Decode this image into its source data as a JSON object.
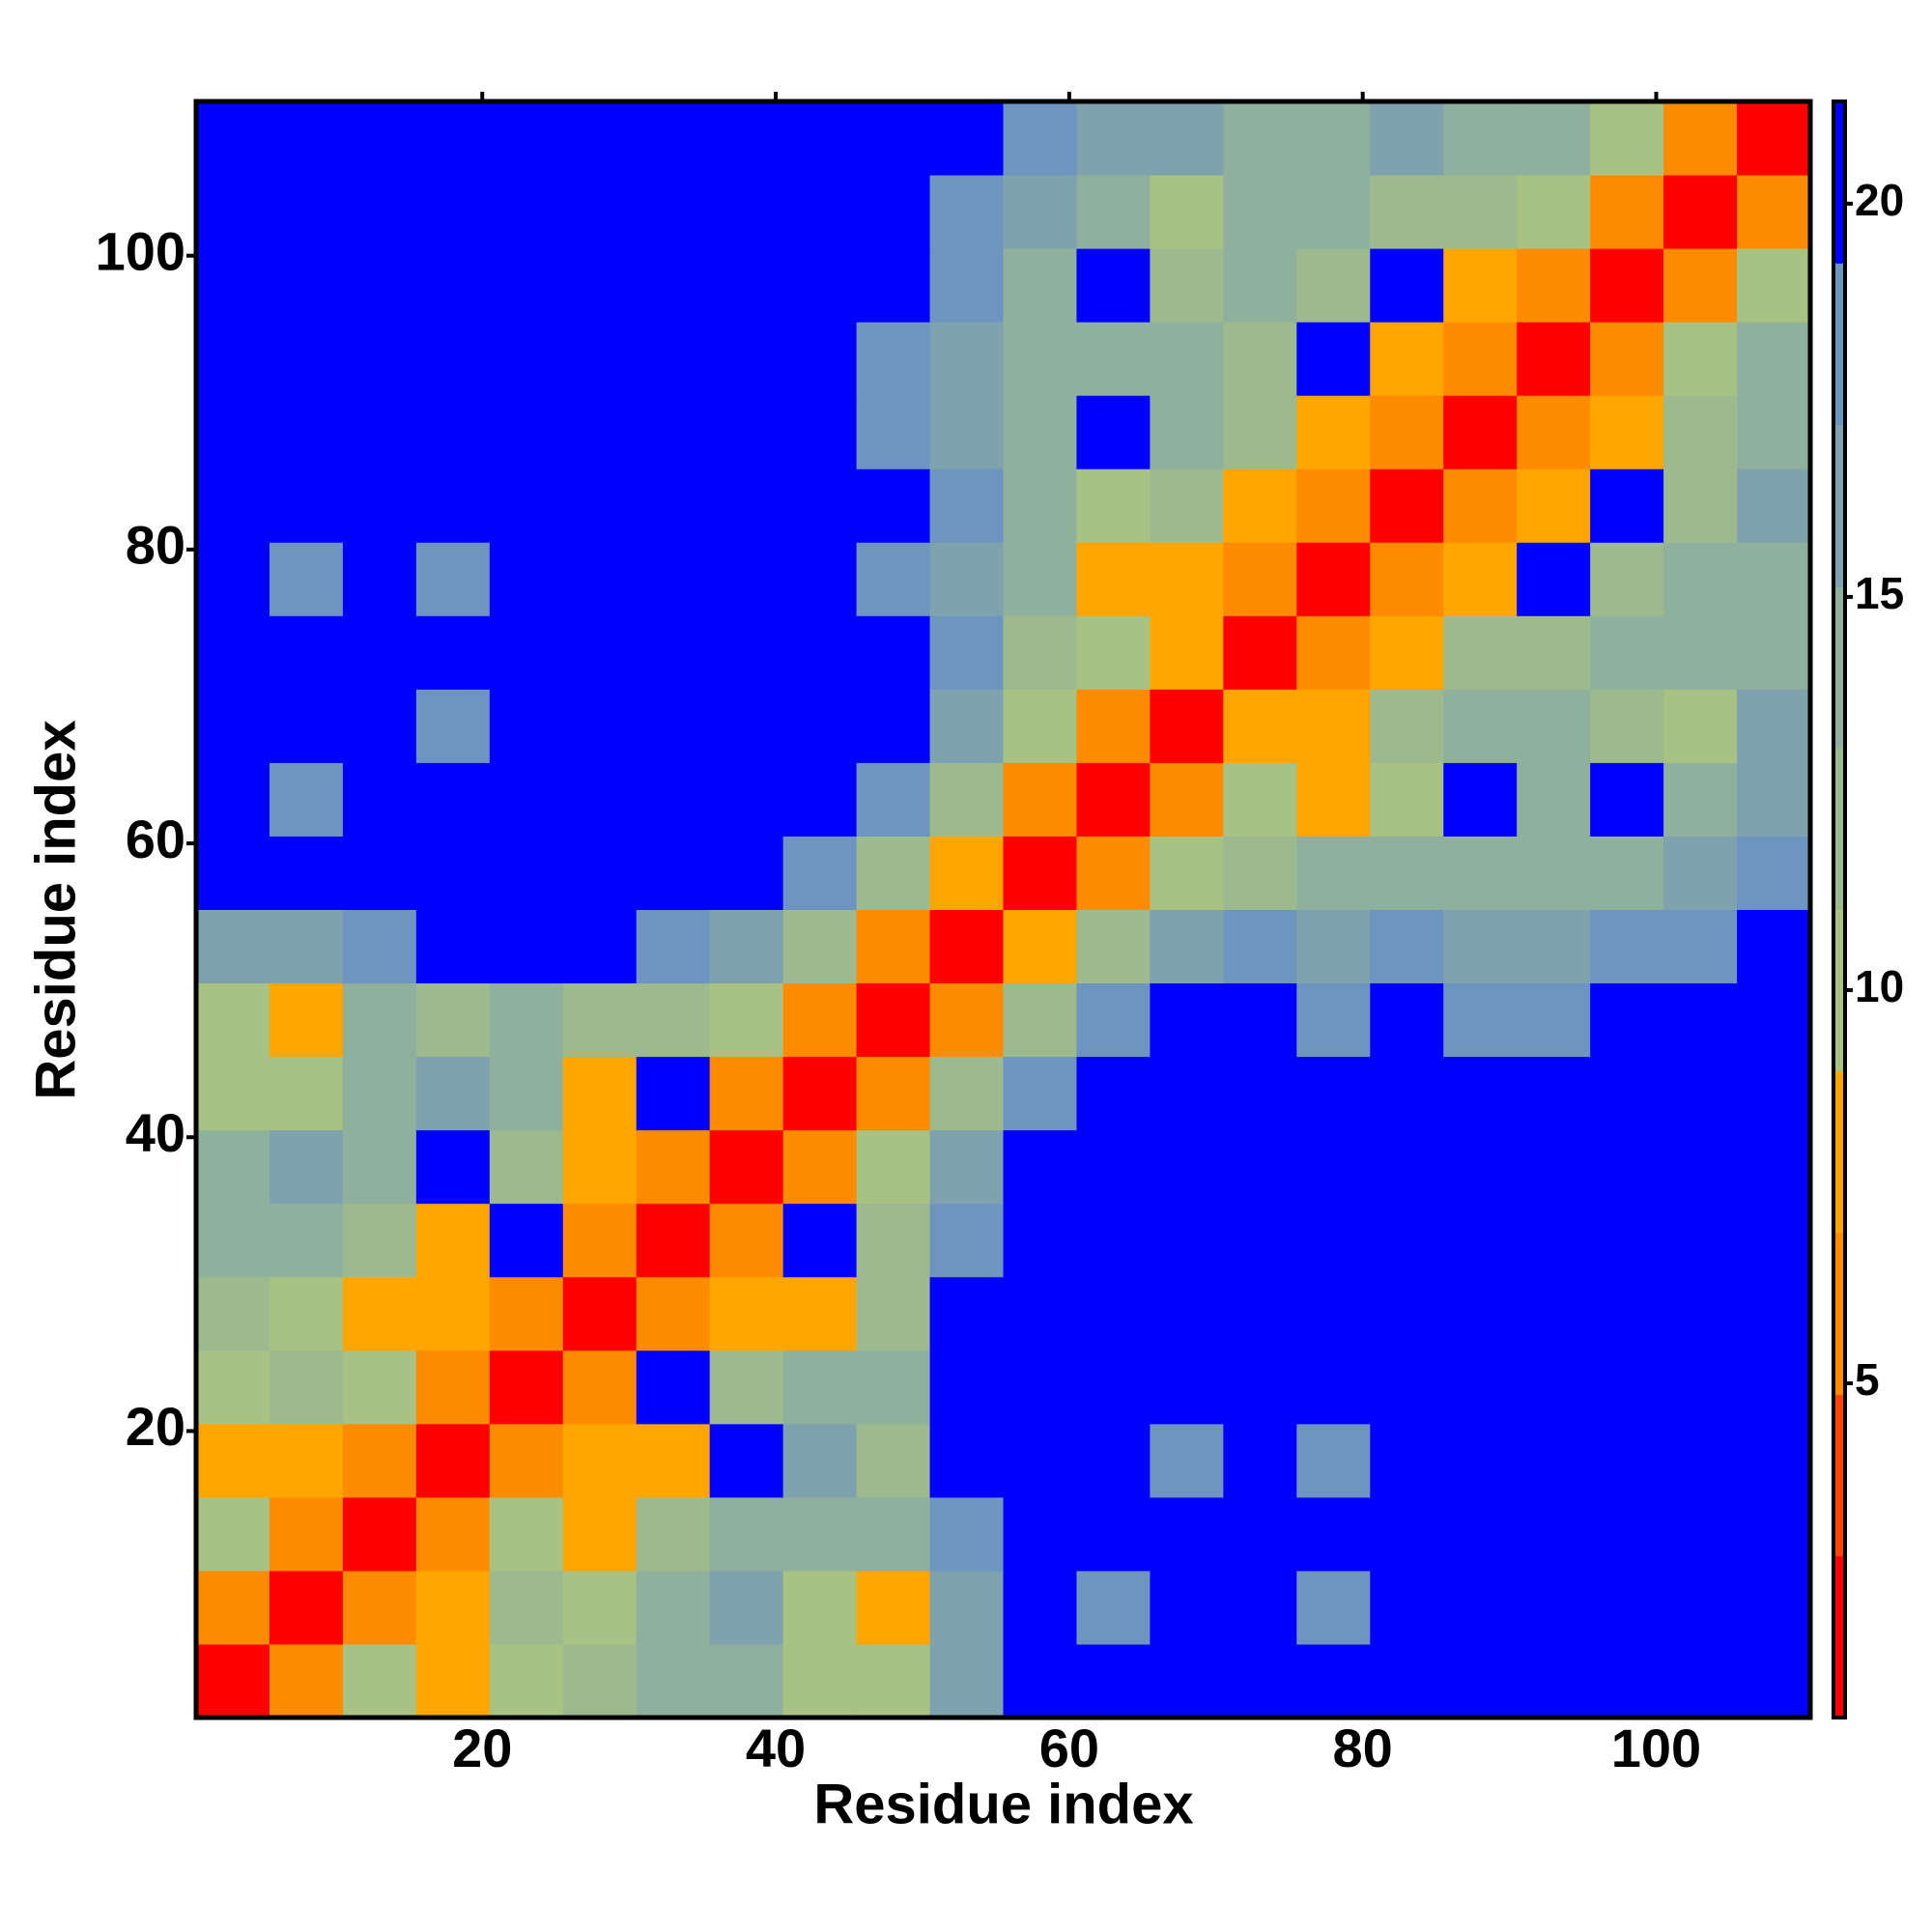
{
  "chart_data": {
    "type": "heatmap",
    "xlabel": "Residue index",
    "ylabel": "Residue index",
    "xlim": [
      0.5,
      110.5
    ],
    "ylim": [
      0.5,
      110.5
    ],
    "xticks": [
      20,
      40,
      60,
      80,
      100
    ],
    "yticks": [
      20,
      40,
      60,
      80,
      100
    ],
    "xbins": [
      0.5,
      5.5,
      10.5,
      15.5,
      20.5,
      25.5,
      30.5,
      35.5,
      40.5,
      45.5,
      50.5,
      55.5,
      60.5,
      65.5,
      70.5,
      75.5,
      80.5,
      85.5,
      90.5,
      95.5,
      100.5,
      105.5,
      110.5
    ],
    "ybins": [
      0.5,
      5.5,
      10.5,
      15.5,
      20.5,
      25.5,
      30.5,
      35.5,
      40.5,
      45.5,
      50.5,
      55.5,
      60.5,
      65.5,
      70.5,
      75.5,
      80.5,
      85.5,
      90.5,
      95.5,
      100.5,
      105.5,
      110.5
    ],
    "zlim": [
      0.75,
      21.3
    ],
    "zticks": [
      5,
      10,
      15,
      20
    ],
    "colors": [
      "#ff0000",
      "#ff4500",
      "#ff8c00",
      "#ffa500",
      "#a7c283",
      "#9dba8e",
      "#8fb09c",
      "#7ea2ae",
      "#6d95bf",
      "#0000ff"
    ],
    "z": [
      [
        2,
        6,
        11,
        7,
        9,
        13,
        14,
        15,
        10,
        9,
        17,
        21,
        21,
        21,
        21,
        21,
        21,
        21,
        21,
        21,
        21,
        21
      ],
      [
        6,
        2,
        6,
        8,
        12,
        11,
        14,
        16,
        9,
        7,
        16,
        21,
        19,
        21,
        21,
        19,
        21,
        21,
        21,
        21,
        21,
        21
      ],
      [
        11,
        6,
        2,
        6,
        10,
        8,
        13,
        15,
        14,
        15,
        19,
        21,
        21,
        21,
        21,
        21,
        21,
        21,
        21,
        21,
        21,
        21
      ],
      [
        7,
        8,
        6,
        2,
        6,
        8,
        8,
        21,
        16,
        13,
        21,
        21,
        21,
        19,
        21,
        19,
        21,
        21,
        21,
        21,
        21,
        21
      ],
      [
        9,
        12,
        10,
        6,
        2,
        6,
        21,
        13,
        15,
        14,
        21,
        21,
        21,
        21,
        21,
        21,
        21,
        21,
        21,
        21,
        21,
        21
      ],
      [
        13,
        11,
        8,
        8,
        6,
        2,
        6,
        8,
        8,
        13,
        21,
        21,
        21,
        21,
        21,
        21,
        21,
        21,
        21,
        21,
        21,
        21
      ],
      [
        14,
        14,
        13,
        8,
        21,
        6,
        2,
        6,
        21,
        12,
        19,
        21,
        21,
        21,
        21,
        21,
        21,
        21,
        21,
        21,
        21,
        21
      ],
      [
        15,
        16,
        15,
        21,
        13,
        8,
        6,
        2,
        6,
        9,
        16,
        21,
        21,
        21,
        21,
        21,
        21,
        21,
        21,
        21,
        21,
        21
      ],
      [
        10,
        9,
        14,
        16,
        15,
        8,
        21,
        6,
        2,
        6,
        12,
        19,
        21,
        21,
        21,
        21,
        21,
        21,
        21,
        21,
        21,
        21
      ],
      [
        9,
        7,
        15,
        13,
        14,
        13,
        12,
        9,
        6,
        2,
        6,
        13,
        19,
        21,
        21,
        19,
        21,
        19,
        19,
        21,
        21,
        21
      ],
      [
        17,
        16,
        19,
        21,
        21,
        21,
        19,
        16,
        12,
        6,
        2,
        7,
        12,
        17,
        18,
        17,
        18,
        17,
        16,
        18,
        19,
        21
      ],
      [
        21,
        21,
        21,
        21,
        21,
        21,
        21,
        21,
        19,
        13,
        7,
        2,
        6,
        11,
        13,
        15,
        15,
        15,
        14,
        15,
        16,
        19
      ],
      [
        21,
        19,
        21,
        21,
        21,
        21,
        21,
        21,
        21,
        19,
        12,
        6,
        2,
        6,
        9,
        8,
        9,
        21,
        14,
        21,
        15,
        17
      ],
      [
        21,
        21,
        21,
        19,
        21,
        21,
        21,
        21,
        21,
        21,
        17,
        11,
        6,
        2,
        7,
        8,
        13,
        14,
        15,
        13,
        9,
        16
      ],
      [
        21,
        21,
        21,
        21,
        21,
        21,
        21,
        21,
        21,
        21,
        18,
        13,
        9,
        7,
        2,
        6,
        8,
        12,
        13,
        14,
        15,
        14
      ],
      [
        21,
        19,
        21,
        19,
        21,
        21,
        21,
        21,
        21,
        19,
        17,
        15,
        8,
        8,
        6,
        2,
        6,
        8,
        21,
        12,
        14,
        15
      ],
      [
        21,
        21,
        21,
        21,
        21,
        21,
        21,
        21,
        21,
        21,
        18,
        15,
        9,
        13,
        8,
        6,
        2,
        6,
        8,
        21,
        13,
        16
      ],
      [
        21,
        21,
        21,
        21,
        21,
        21,
        21,
        21,
        21,
        19,
        17,
        15,
        21,
        14,
        12,
        8,
        6,
        2,
        6,
        7,
        12,
        14
      ],
      [
        21,
        21,
        21,
        21,
        21,
        21,
        21,
        21,
        21,
        19,
        16,
        14,
        14,
        15,
        13,
        21,
        8,
        6,
        2,
        6,
        9,
        15
      ],
      [
        21,
        21,
        21,
        21,
        21,
        21,
        21,
        21,
        21,
        21,
        18,
        15,
        21,
        13,
        14,
        12,
        21,
        7,
        6,
        2,
        6,
        9
      ],
      [
        21,
        21,
        21,
        21,
        21,
        21,
        21,
        21,
        21,
        21,
        19,
        16,
        15,
        9,
        15,
        14,
        13,
        12,
        9,
        6,
        2,
        6
      ],
      [
        21,
        21,
        21,
        21,
        21,
        21,
        21,
        21,
        21,
        21,
        21,
        19,
        17,
        16,
        14,
        15,
        16,
        14,
        15,
        9,
        6,
        2
      ]
    ]
  }
}
